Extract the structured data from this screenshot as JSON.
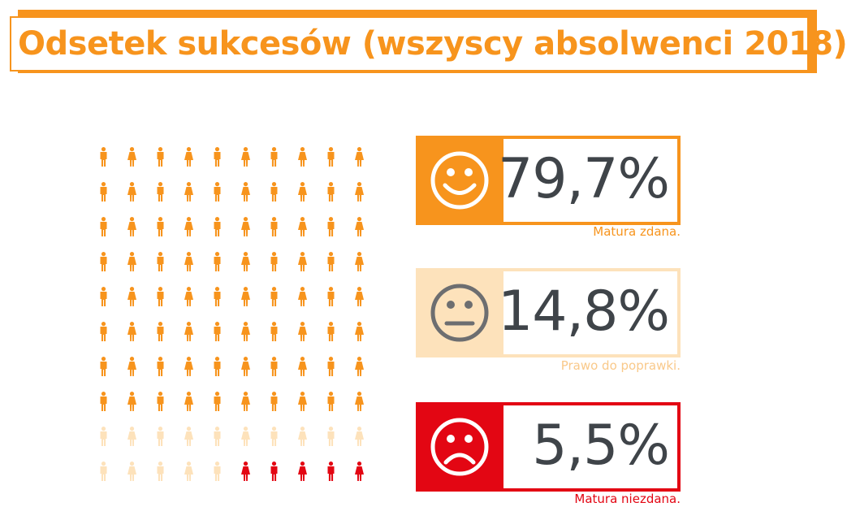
{
  "title": "Odsetek sukcesów (wszyscy absolwenci 2018)",
  "colors": {
    "passed": "#f7941d",
    "retake": "#fde2bb",
    "failed": "#e30613",
    "value_text": "#3f4449"
  },
  "chart_data": {
    "type": "pictogram",
    "grid": {
      "rows": 10,
      "cols": 10
    },
    "categories": [
      {
        "key": "passed",
        "value": 79.7,
        "label": "79,7%",
        "caption": "Matura zdana.",
        "icon": "smile-face-icon",
        "people": 80
      },
      {
        "key": "retake",
        "value": 14.8,
        "label": "14,8%",
        "caption": "Prawo do poprawki.",
        "icon": "neutral-face-icon",
        "people": 15
      },
      {
        "key": "failed",
        "value": 5.5,
        "label": "5,5%",
        "caption": "Matura niezdana.",
        "icon": "sad-face-icon",
        "people": 5
      }
    ]
  }
}
